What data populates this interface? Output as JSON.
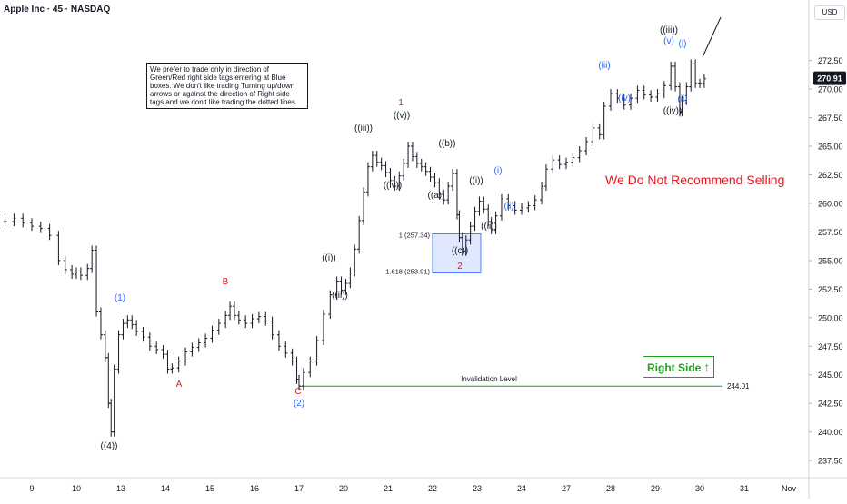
{
  "title": "Apple Inc · 45 · NASDAQ",
  "currency": "USD",
  "note": "We prefer to trade only in direction of Green/Red right side tags entering at Blue boxes. We don't like trading Turning up/down arrows or against the direction of Right side tags and we don't like trading the dotted lines.",
  "recommendation": "We Do Not Recommend Selling",
  "right_side_label": "Right Side",
  "invalidation_label": "Invalidation Level",
  "invalidation_value": "244.01",
  "last_price": "270.91",
  "fib_labels": [
    "1 (257.34)",
    "1.618 (253.91)"
  ],
  "colors": {
    "red": "#e3181e",
    "blue": "#2962ff",
    "green": "#1fa11f",
    "black": "#131722"
  },
  "chart_data": {
    "type": "line",
    "ylim": [
      236,
      277
    ],
    "y_ticks": [
      237.5,
      240.0,
      242.5,
      245.0,
      247.5,
      250.0,
      252.5,
      255.0,
      257.5,
      260.0,
      262.5,
      265.0,
      267.5,
      270.0,
      272.5
    ],
    "x_ticks": [
      "9",
      "10",
      "13",
      "14",
      "15",
      "16",
      "17",
      "20",
      "21",
      "22",
      "23",
      "24",
      "27",
      "28",
      "29",
      "30",
      "31",
      "Nov"
    ],
    "x_tick_positions": [
      0,
      1,
      2,
      3,
      4,
      5,
      6,
      7,
      8,
      9,
      10,
      11,
      12,
      13,
      14,
      15,
      16,
      17
    ],
    "series": [
      {
        "values": [
          [
            -0.6,
            258.4
          ],
          [
            -0.4,
            258.7
          ],
          [
            -0.2,
            258.3
          ],
          [
            0.0,
            258.0
          ],
          [
            0.2,
            257.8
          ],
          [
            0.4,
            257.2
          ],
          [
            0.6,
            255.0
          ],
          [
            0.75,
            254.2
          ],
          [
            0.9,
            253.8
          ],
          [
            1.0,
            254.0
          ],
          [
            1.1,
            253.7
          ],
          [
            1.25,
            254.3
          ],
          [
            1.35,
            255.9
          ],
          [
            1.45,
            250.5
          ],
          [
            1.55,
            248.5
          ],
          [
            1.65,
            246.5
          ],
          [
            1.72,
            242.5
          ],
          [
            1.78,
            240.0
          ],
          [
            1.85,
            245.5
          ],
          [
            1.95,
            248.5
          ],
          [
            2.05,
            249.5
          ],
          [
            2.15,
            249.8
          ],
          [
            2.25,
            249.4
          ],
          [
            2.35,
            248.8
          ],
          [
            2.5,
            248.3
          ],
          [
            2.65,
            247.5
          ],
          [
            2.8,
            247.2
          ],
          [
            2.95,
            246.8
          ],
          [
            3.05,
            245.5
          ],
          [
            3.15,
            245.6
          ],
          [
            3.3,
            246.2
          ],
          [
            3.45,
            247.0
          ],
          [
            3.6,
            247.4
          ],
          [
            3.75,
            247.8
          ],
          [
            3.9,
            248.2
          ],
          [
            4.05,
            248.9
          ],
          [
            4.2,
            249.5
          ],
          [
            4.35,
            250.2
          ],
          [
            4.45,
            251.0
          ],
          [
            4.55,
            250.2
          ],
          [
            4.65,
            249.8
          ],
          [
            4.8,
            249.5
          ],
          [
            4.95,
            249.9
          ],
          [
            5.1,
            250.1
          ],
          [
            5.25,
            249.7
          ],
          [
            5.4,
            248.5
          ],
          [
            5.55,
            247.5
          ],
          [
            5.7,
            246.9
          ],
          [
            5.85,
            246.2
          ],
          [
            5.95,
            244.6
          ],
          [
            6.0,
            244.01
          ],
          [
            6.1,
            245.2
          ],
          [
            6.25,
            246.2
          ],
          [
            6.4,
            248.0
          ],
          [
            6.55,
            250.3
          ],
          [
            6.7,
            252.0
          ],
          [
            6.85,
            253.2
          ],
          [
            6.95,
            252.4
          ],
          [
            7.05,
            253.0
          ],
          [
            7.15,
            254.0
          ],
          [
            7.25,
            256.0
          ],
          [
            7.35,
            258.5
          ],
          [
            7.45,
            261.0
          ],
          [
            7.55,
            263.2
          ],
          [
            7.65,
            264.2
          ],
          [
            7.75,
            263.6
          ],
          [
            7.85,
            263.3
          ],
          [
            7.95,
            262.7
          ],
          [
            8.05,
            262.0
          ],
          [
            8.15,
            261.5
          ],
          [
            8.25,
            262.4
          ],
          [
            8.35,
            263.5
          ],
          [
            8.45,
            265.0
          ],
          [
            8.55,
            264.1
          ],
          [
            8.65,
            263.5
          ],
          [
            8.75,
            263.2
          ],
          [
            8.85,
            262.8
          ],
          [
            8.95,
            262.3
          ],
          [
            9.05,
            261.8
          ],
          [
            9.15,
            260.8
          ],
          [
            9.25,
            260.3
          ],
          [
            9.35,
            261.5
          ],
          [
            9.45,
            262.6
          ],
          [
            9.55,
            259.0
          ],
          [
            9.6,
            257.0
          ],
          [
            9.67,
            255.8
          ],
          [
            9.75,
            256.8
          ],
          [
            9.85,
            258.0
          ],
          [
            9.95,
            259.3
          ],
          [
            10.05,
            260.2
          ],
          [
            10.15,
            259.5
          ],
          [
            10.25,
            258.4
          ],
          [
            10.32,
            257.7
          ],
          [
            10.42,
            258.9
          ],
          [
            10.55,
            260.4
          ],
          [
            10.7,
            259.8
          ],
          [
            10.85,
            259.4
          ],
          [
            11.0,
            259.6
          ],
          [
            11.15,
            259.8
          ],
          [
            11.3,
            260.3
          ],
          [
            11.45,
            261.5
          ],
          [
            11.55,
            263.0
          ],
          [
            11.7,
            263.8
          ],
          [
            11.85,
            263.4
          ],
          [
            12.0,
            263.6
          ],
          [
            12.15,
            264.0
          ],
          [
            12.3,
            264.6
          ],
          [
            12.45,
            265.4
          ],
          [
            12.6,
            266.6
          ],
          [
            12.75,
            266.0
          ],
          [
            12.85,
            268.5
          ],
          [
            13.0,
            269.6
          ],
          [
            13.15,
            269.2
          ],
          [
            13.3,
            268.6
          ],
          [
            13.45,
            269.2
          ],
          [
            13.6,
            269.9
          ],
          [
            13.75,
            269.5
          ],
          [
            13.9,
            269.3
          ],
          [
            14.05,
            269.6
          ],
          [
            14.2,
            270.3
          ],
          [
            14.35,
            272.0
          ],
          [
            14.45,
            270.2
          ],
          [
            14.55,
            268.0
          ],
          [
            14.6,
            269.0
          ],
          [
            14.7,
            270.2
          ],
          [
            14.8,
            272.2
          ],
          [
            14.9,
            270.5
          ],
          [
            15.0,
            270.5
          ],
          [
            15.1,
            270.9
          ]
        ]
      }
    ]
  }
}
